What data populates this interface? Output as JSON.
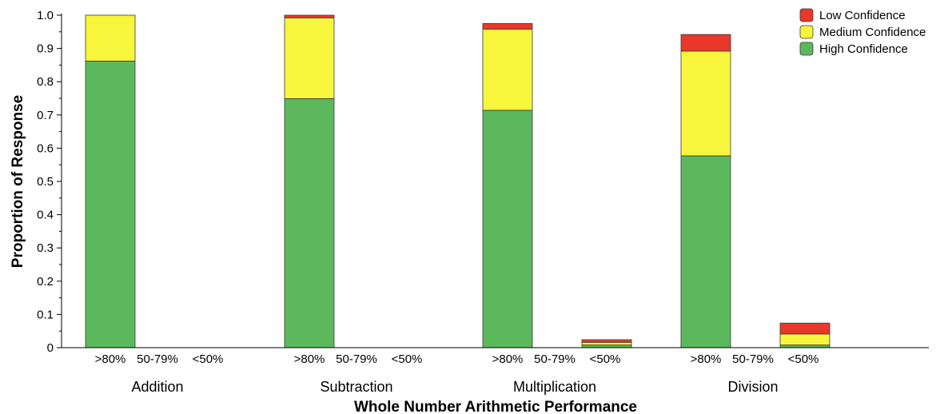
{
  "chart_data": {
    "type": "bar",
    "stacked": true,
    "xlabel": "Whole Number Arithmetic Performance",
    "ylabel": "Proportion of Response",
    "ylim": [
      0,
      1.0
    ],
    "yticks": [
      "0",
      "0.1",
      "0.2",
      "0.3",
      "0.4",
      "0.5",
      "0.6",
      "0.7",
      "0.8",
      "0.9",
      "1.0"
    ],
    "grid": false,
    "legend_position": "top-right",
    "groups": [
      {
        "label": "Addition",
        "categories": [
          ">80%",
          "50-79%",
          "<50%"
        ]
      },
      {
        "label": "Subtraction",
        "categories": [
          ">80%",
          "50-79%",
          "<50%"
        ]
      },
      {
        "label": "Multiplication",
        "categories": [
          ">80%",
          "50-79%",
          "<50%"
        ]
      },
      {
        "label": "Division",
        "categories": [
          ">80%",
          "50-79%",
          "<50%"
        ]
      }
    ],
    "series": [
      {
        "name": "Low Confidence",
        "color": "#e8382a",
        "values": [
          [
            0,
            0,
            0
          ],
          [
            0.008,
            0,
            0
          ],
          [
            0.017,
            0,
            0.008
          ],
          [
            0.05,
            0,
            0.033
          ]
        ]
      },
      {
        "name": "Medium Confidence",
        "color": "#f7f53c",
        "values": [
          [
            0.138,
            0,
            0
          ],
          [
            0.243,
            0,
            0
          ],
          [
            0.244,
            0,
            0.008
          ],
          [
            0.315,
            0,
            0.033
          ]
        ]
      },
      {
        "name": "High Confidence",
        "color": "#5cb85c",
        "values": [
          [
            0.862,
            0,
            0
          ],
          [
            0.749,
            0,
            0
          ],
          [
            0.714,
            0,
            0.008
          ],
          [
            0.577,
            0,
            0.008
          ]
        ]
      }
    ],
    "bottom_segments": [
      {
        "group": 3,
        "category": 0,
        "series": "Low Confidence",
        "value": 0.008
      }
    ]
  }
}
